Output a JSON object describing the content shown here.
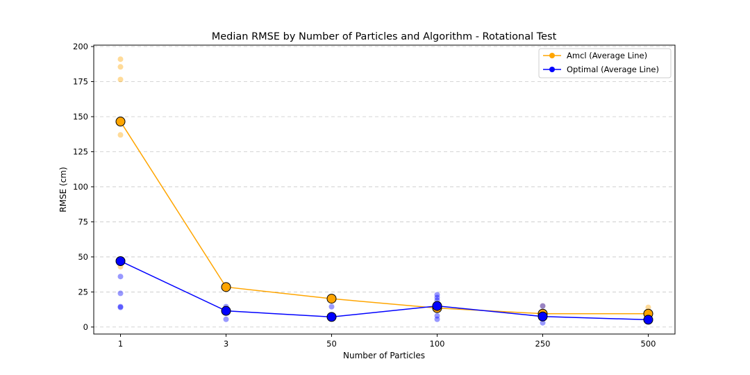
{
  "chart_data": {
    "type": "line",
    "title": "Median RMSE by Number of Particles and Algorithm - Rotational Test",
    "xlabel": "Number of Particles",
    "ylabel": "RMSE (cm)",
    "categories": [
      "1",
      "3",
      "50",
      "100",
      "250",
      "500"
    ],
    "ylim": [
      -5,
      201
    ],
    "yticks": [
      0,
      25,
      50,
      75,
      100,
      125,
      150,
      175,
      200
    ],
    "grid": "y-dashed",
    "legend_position": "top-right",
    "series": [
      {
        "name": "Amcl (Average Line)",
        "color": "#FFA500",
        "values": [
          146.5,
          28.5,
          20.2,
          13.5,
          9.5,
          9.5
        ],
        "runs": [
          [
            191,
            185.5,
            176.5,
            146,
            137,
            43
          ],
          [
            29,
            12
          ],
          [
            20,
            8
          ],
          [
            12,
            15
          ],
          [
            15,
            9
          ],
          [
            14,
            10
          ]
        ]
      },
      {
        "name": "Optimal (Average Line)",
        "color": "#0000FF",
        "values": [
          47,
          11.5,
          7.2,
          15,
          7.5,
          5.2
        ],
        "runs": [
          [
            47,
            36,
            24,
            14.5,
            14
          ],
          [
            14.5,
            12,
            11,
            5.5
          ],
          [
            14.5,
            7,
            6
          ],
          [
            23,
            21,
            19,
            15,
            8,
            5.5
          ],
          [
            15,
            7.5,
            6,
            3
          ],
          [
            8,
            5,
            4
          ]
        ]
      }
    ]
  }
}
